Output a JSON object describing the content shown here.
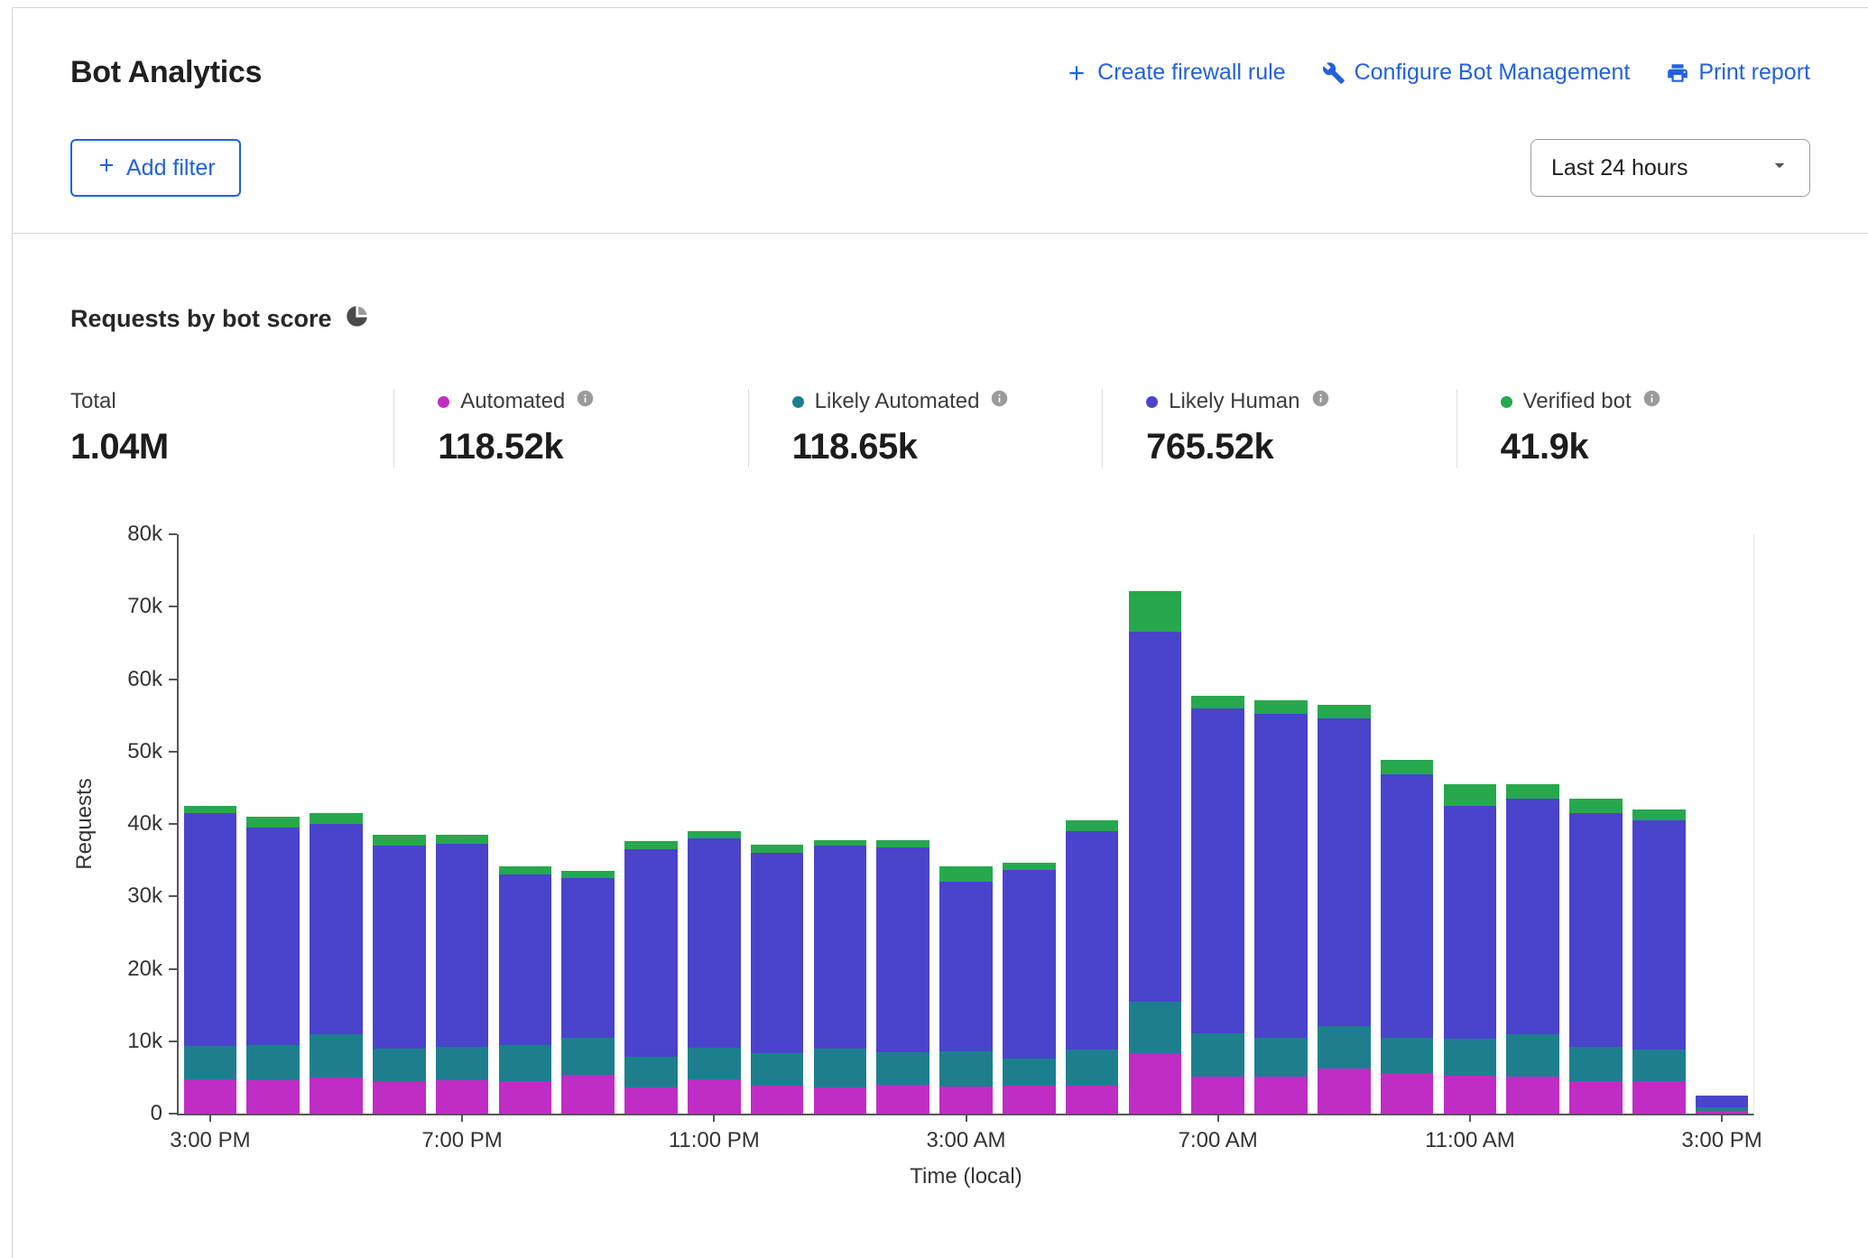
{
  "colors": {
    "accent": "#2261dd",
    "border": "#d4d4d4",
    "automated": "#bf2dc4",
    "likely_automated": "#1d7f8e",
    "likely_human": "#4a43cc",
    "verified_bot": "#27a84d"
  },
  "header": {
    "title": "Bot Analytics",
    "actions": [
      {
        "label": "Create firewall rule",
        "icon": "plus-icon"
      },
      {
        "label": "Configure Bot Management",
        "icon": "wrench-icon"
      },
      {
        "label": "Print report",
        "icon": "printer-icon"
      }
    ],
    "add_filter_label": "Add filter",
    "time_range": "Last 24 hours"
  },
  "section": {
    "title": "Requests by bot score"
  },
  "stats": {
    "total_label": "Total",
    "total_value": "1.04M",
    "items": [
      {
        "label": "Automated",
        "value": "118.52k",
        "color": "#bf2dc4"
      },
      {
        "label": "Likely Automated",
        "value": "118.65k",
        "color": "#1d7f8e"
      },
      {
        "label": "Likely Human",
        "value": "765.52k",
        "color": "#4a43cc"
      },
      {
        "label": "Verified bot",
        "value": "41.9k",
        "color": "#27a84d"
      }
    ]
  },
  "chart_data": {
    "type": "bar",
    "stacked": true,
    "title": "Requests by bot score",
    "xlabel": "Time (local)",
    "ylabel": "Requests",
    "ylim": [
      0,
      80000
    ],
    "grid": false,
    "y_ticks": [
      "0",
      "10k",
      "20k",
      "30k",
      "40k",
      "50k",
      "60k",
      "70k",
      "80k"
    ],
    "x": [
      "3:00 PM",
      "4:00 PM",
      "5:00 PM",
      "6:00 PM",
      "7:00 PM",
      "8:00 PM",
      "9:00 PM",
      "10:00 PM",
      "11:00 PM",
      "12:00 AM",
      "1:00 AM",
      "2:00 AM",
      "3:00 AM",
      "4:00 AM",
      "5:00 AM",
      "6:00 AM",
      "7:00 AM",
      "8:00 AM",
      "9:00 AM",
      "10:00 AM",
      "11:00 AM",
      "12:00 PM",
      "1:00 PM",
      "2:00 PM",
      "3:00 PM"
    ],
    "x_tick_labels": [
      "3:00 PM",
      "7:00 PM",
      "11:00 PM",
      "3:00 AM",
      "7:00 AM",
      "11:00 AM",
      "3:00 PM"
    ],
    "x_tick_positions": [
      0,
      4,
      8,
      12,
      16,
      20,
      24
    ],
    "series": [
      {
        "name": "Automated",
        "color": "#bf2dc4",
        "values": [
          4700,
          4600,
          5000,
          4400,
          4600,
          4500,
          5400,
          3600,
          4700,
          3900,
          3600,
          4000,
          3800,
          3900,
          3900,
          8400,
          5100,
          5100,
          6200,
          5500,
          5200,
          5100,
          4500,
          4500,
          400
        ]
      },
      {
        "name": "Likely Automated",
        "color": "#1d7f8e",
        "values": [
          4600,
          4900,
          6000,
          4600,
          4600,
          5000,
          5100,
          4300,
          4400,
          4500,
          5400,
          4500,
          4800,
          3700,
          5000,
          7000,
          6000,
          5400,
          5900,
          5000,
          5200,
          5900,
          4700,
          4400,
          500
        ]
      },
      {
        "name": "Likely Human",
        "color": "#4a43cc",
        "values": [
          32200,
          30000,
          29000,
          28000,
          28100,
          23500,
          22000,
          28600,
          28900,
          27600,
          28000,
          28300,
          23400,
          26000,
          30100,
          51100,
          44900,
          44700,
          42500,
          36400,
          32100,
          32500,
          32300,
          31600,
          1600
        ]
      },
      {
        "name": "Verified bot",
        "color": "#27a84d",
        "values": [
          1000,
          1500,
          1500,
          1500,
          1200,
          1200,
          1000,
          1100,
          1000,
          1100,
          800,
          1000,
          2100,
          1100,
          1500,
          5600,
          1700,
          1900,
          1900,
          2000,
          3000,
          2000,
          2000,
          1500,
          0
        ]
      }
    ]
  }
}
